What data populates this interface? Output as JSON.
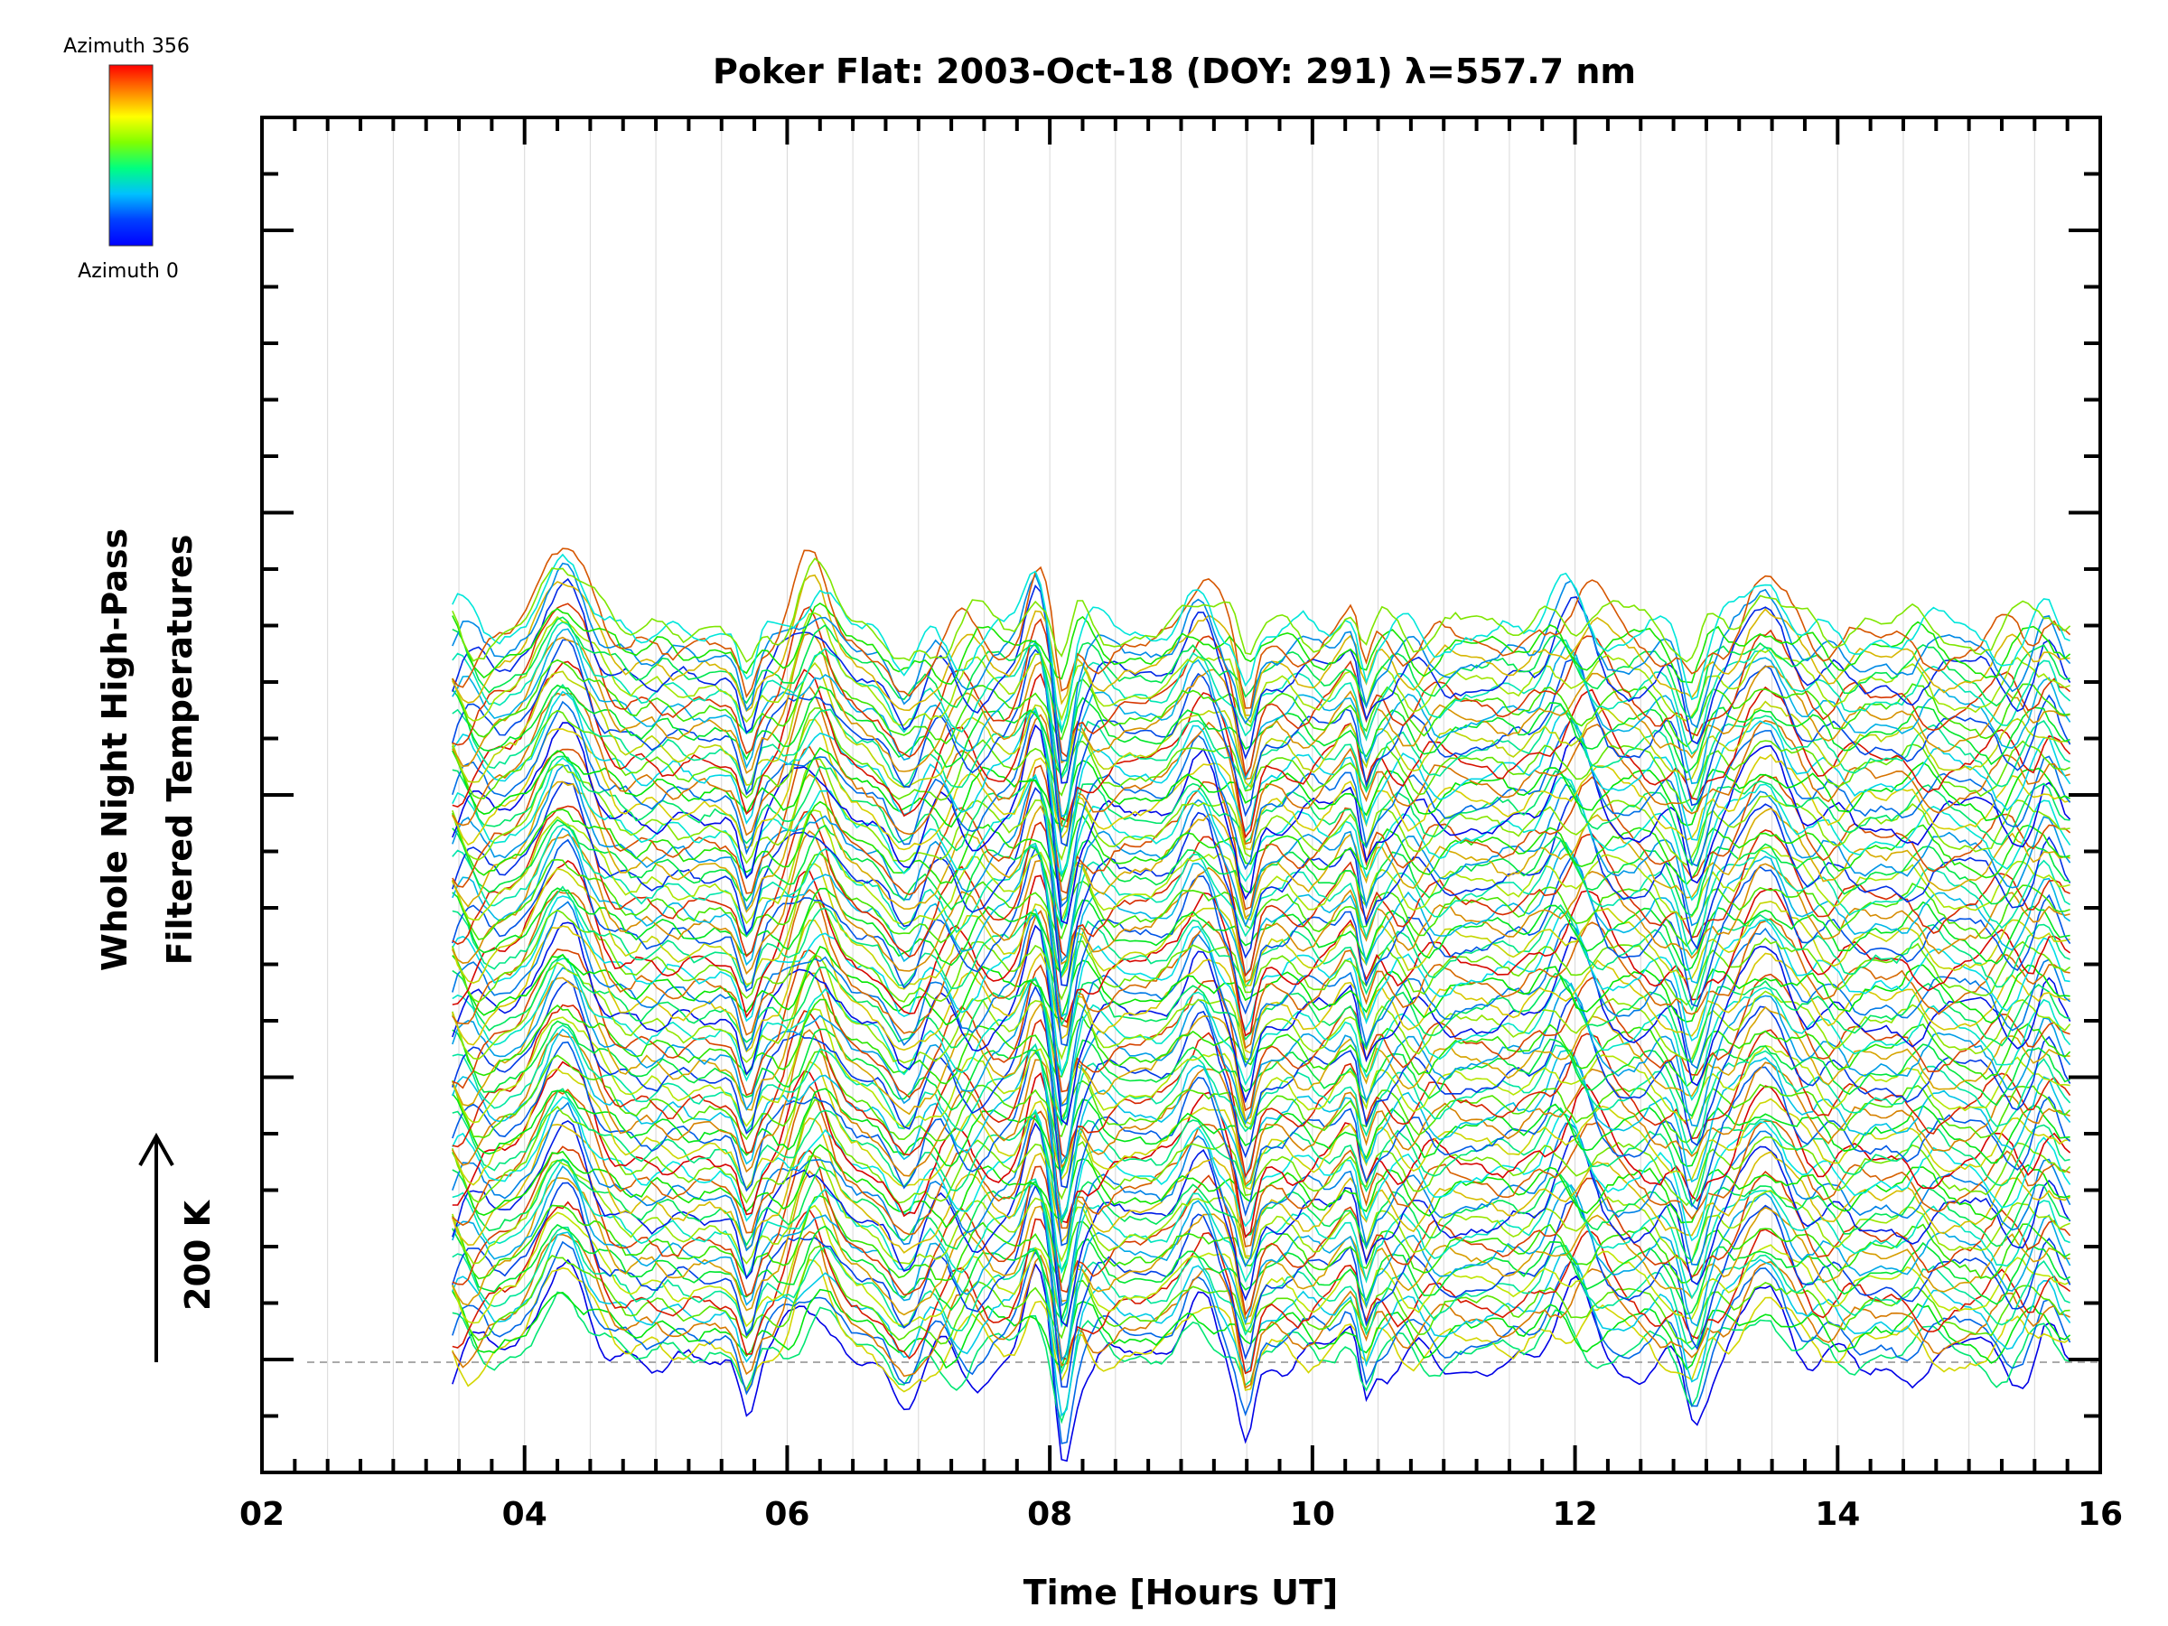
{
  "chart_data": {
    "type": "line",
    "title": "Poker Flat: 2003-Oct-18 (DOY: 291) λ=557.7 nm",
    "xlabel": "Time [Hours UT]",
    "ylabel_line1": "Whole Night High-Pass",
    "ylabel_line2": "Filtered Temperatures",
    "scale_label": "200 K",
    "xlim": [
      2,
      16
    ],
    "x_ticks": [
      "02",
      "04",
      "06",
      "08",
      "10",
      "12",
      "14",
      "16"
    ],
    "x_tick_values": [
      2,
      4,
      6,
      8,
      10,
      12,
      14,
      16
    ],
    "x_start": 3.45,
    "x_end": 15.8,
    "series_count": 100,
    "colorbar": {
      "top_label": "Azimuth 356",
      "bottom_label": "Azimuth 0",
      "colors": [
        "#ff0000",
        "#ff8000",
        "#ffff00",
        "#80ff00",
        "#00ff80",
        "#00c0ff",
        "#0040ff",
        "#0000ff"
      ]
    },
    "grid": true,
    "baseline_dashed": true
  }
}
